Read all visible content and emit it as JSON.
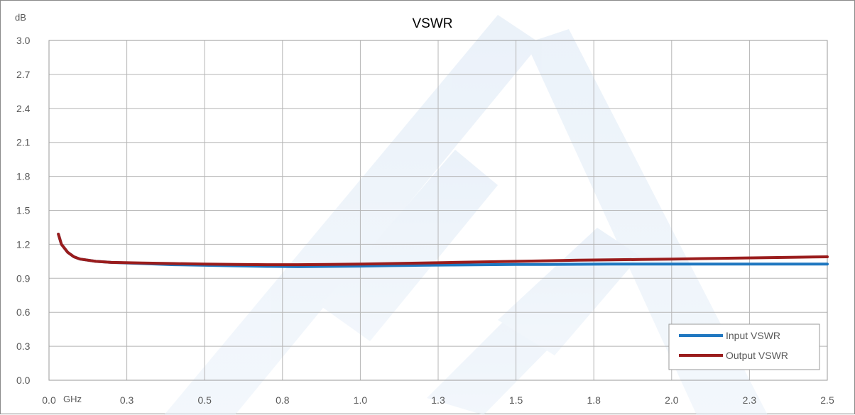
{
  "chart_data": {
    "type": "line",
    "title": "VSWR",
    "ylabel": "dB",
    "xlabel": "GHz",
    "xlim": [
      0.0,
      2.5
    ],
    "ylim": [
      0.0,
      3.0
    ],
    "x_ticks": [
      "0.0",
      "0.3",
      "0.5",
      "0.8",
      "1.0",
      "1.3",
      "1.5",
      "1.8",
      "2.0",
      "2.3",
      "2.5"
    ],
    "y_ticks": [
      "0.0",
      "0.3",
      "0.6",
      "0.9",
      "1.2",
      "1.5",
      "1.8",
      "2.1",
      "2.4",
      "2.7",
      "3.0"
    ],
    "grid": true,
    "legend_position": "bottom-right",
    "series": [
      {
        "name": "Input VSWR",
        "color": "#1f77c0",
        "x": [
          0.03,
          0.04,
          0.06,
          0.08,
          0.1,
          0.15,
          0.2,
          0.3,
          0.4,
          0.5,
          0.6,
          0.7,
          0.8,
          0.9,
          1.0,
          1.1,
          1.2,
          1.3,
          1.4,
          1.5,
          1.6,
          1.7,
          1.8,
          1.9,
          2.0,
          2.1,
          2.2,
          2.3,
          2.4,
          2.5
        ],
        "y": [
          1.29,
          1.2,
          1.13,
          1.09,
          1.07,
          1.05,
          1.04,
          1.03,
          1.02,
          1.015,
          1.01,
          1.005,
          1.003,
          1.005,
          1.008,
          1.012,
          1.015,
          1.018,
          1.02,
          1.022,
          1.023,
          1.024,
          1.025,
          1.025,
          1.025,
          1.025,
          1.025,
          1.025,
          1.025,
          1.025
        ]
      },
      {
        "name": "Output VSWR",
        "color": "#9a1c1c",
        "x": [
          0.03,
          0.04,
          0.06,
          0.08,
          0.1,
          0.15,
          0.2,
          0.3,
          0.4,
          0.5,
          0.6,
          0.7,
          0.8,
          0.9,
          1.0,
          1.1,
          1.2,
          1.3,
          1.4,
          1.5,
          1.6,
          1.7,
          1.8,
          1.9,
          2.0,
          2.1,
          2.2,
          2.3,
          2.4,
          2.5
        ],
        "y": [
          1.29,
          1.2,
          1.13,
          1.09,
          1.07,
          1.05,
          1.04,
          1.035,
          1.03,
          1.025,
          1.022,
          1.02,
          1.02,
          1.022,
          1.025,
          1.03,
          1.035,
          1.04,
          1.045,
          1.05,
          1.055,
          1.06,
          1.063,
          1.066,
          1.07,
          1.074,
          1.078,
          1.082,
          1.086,
          1.09
        ]
      }
    ]
  }
}
